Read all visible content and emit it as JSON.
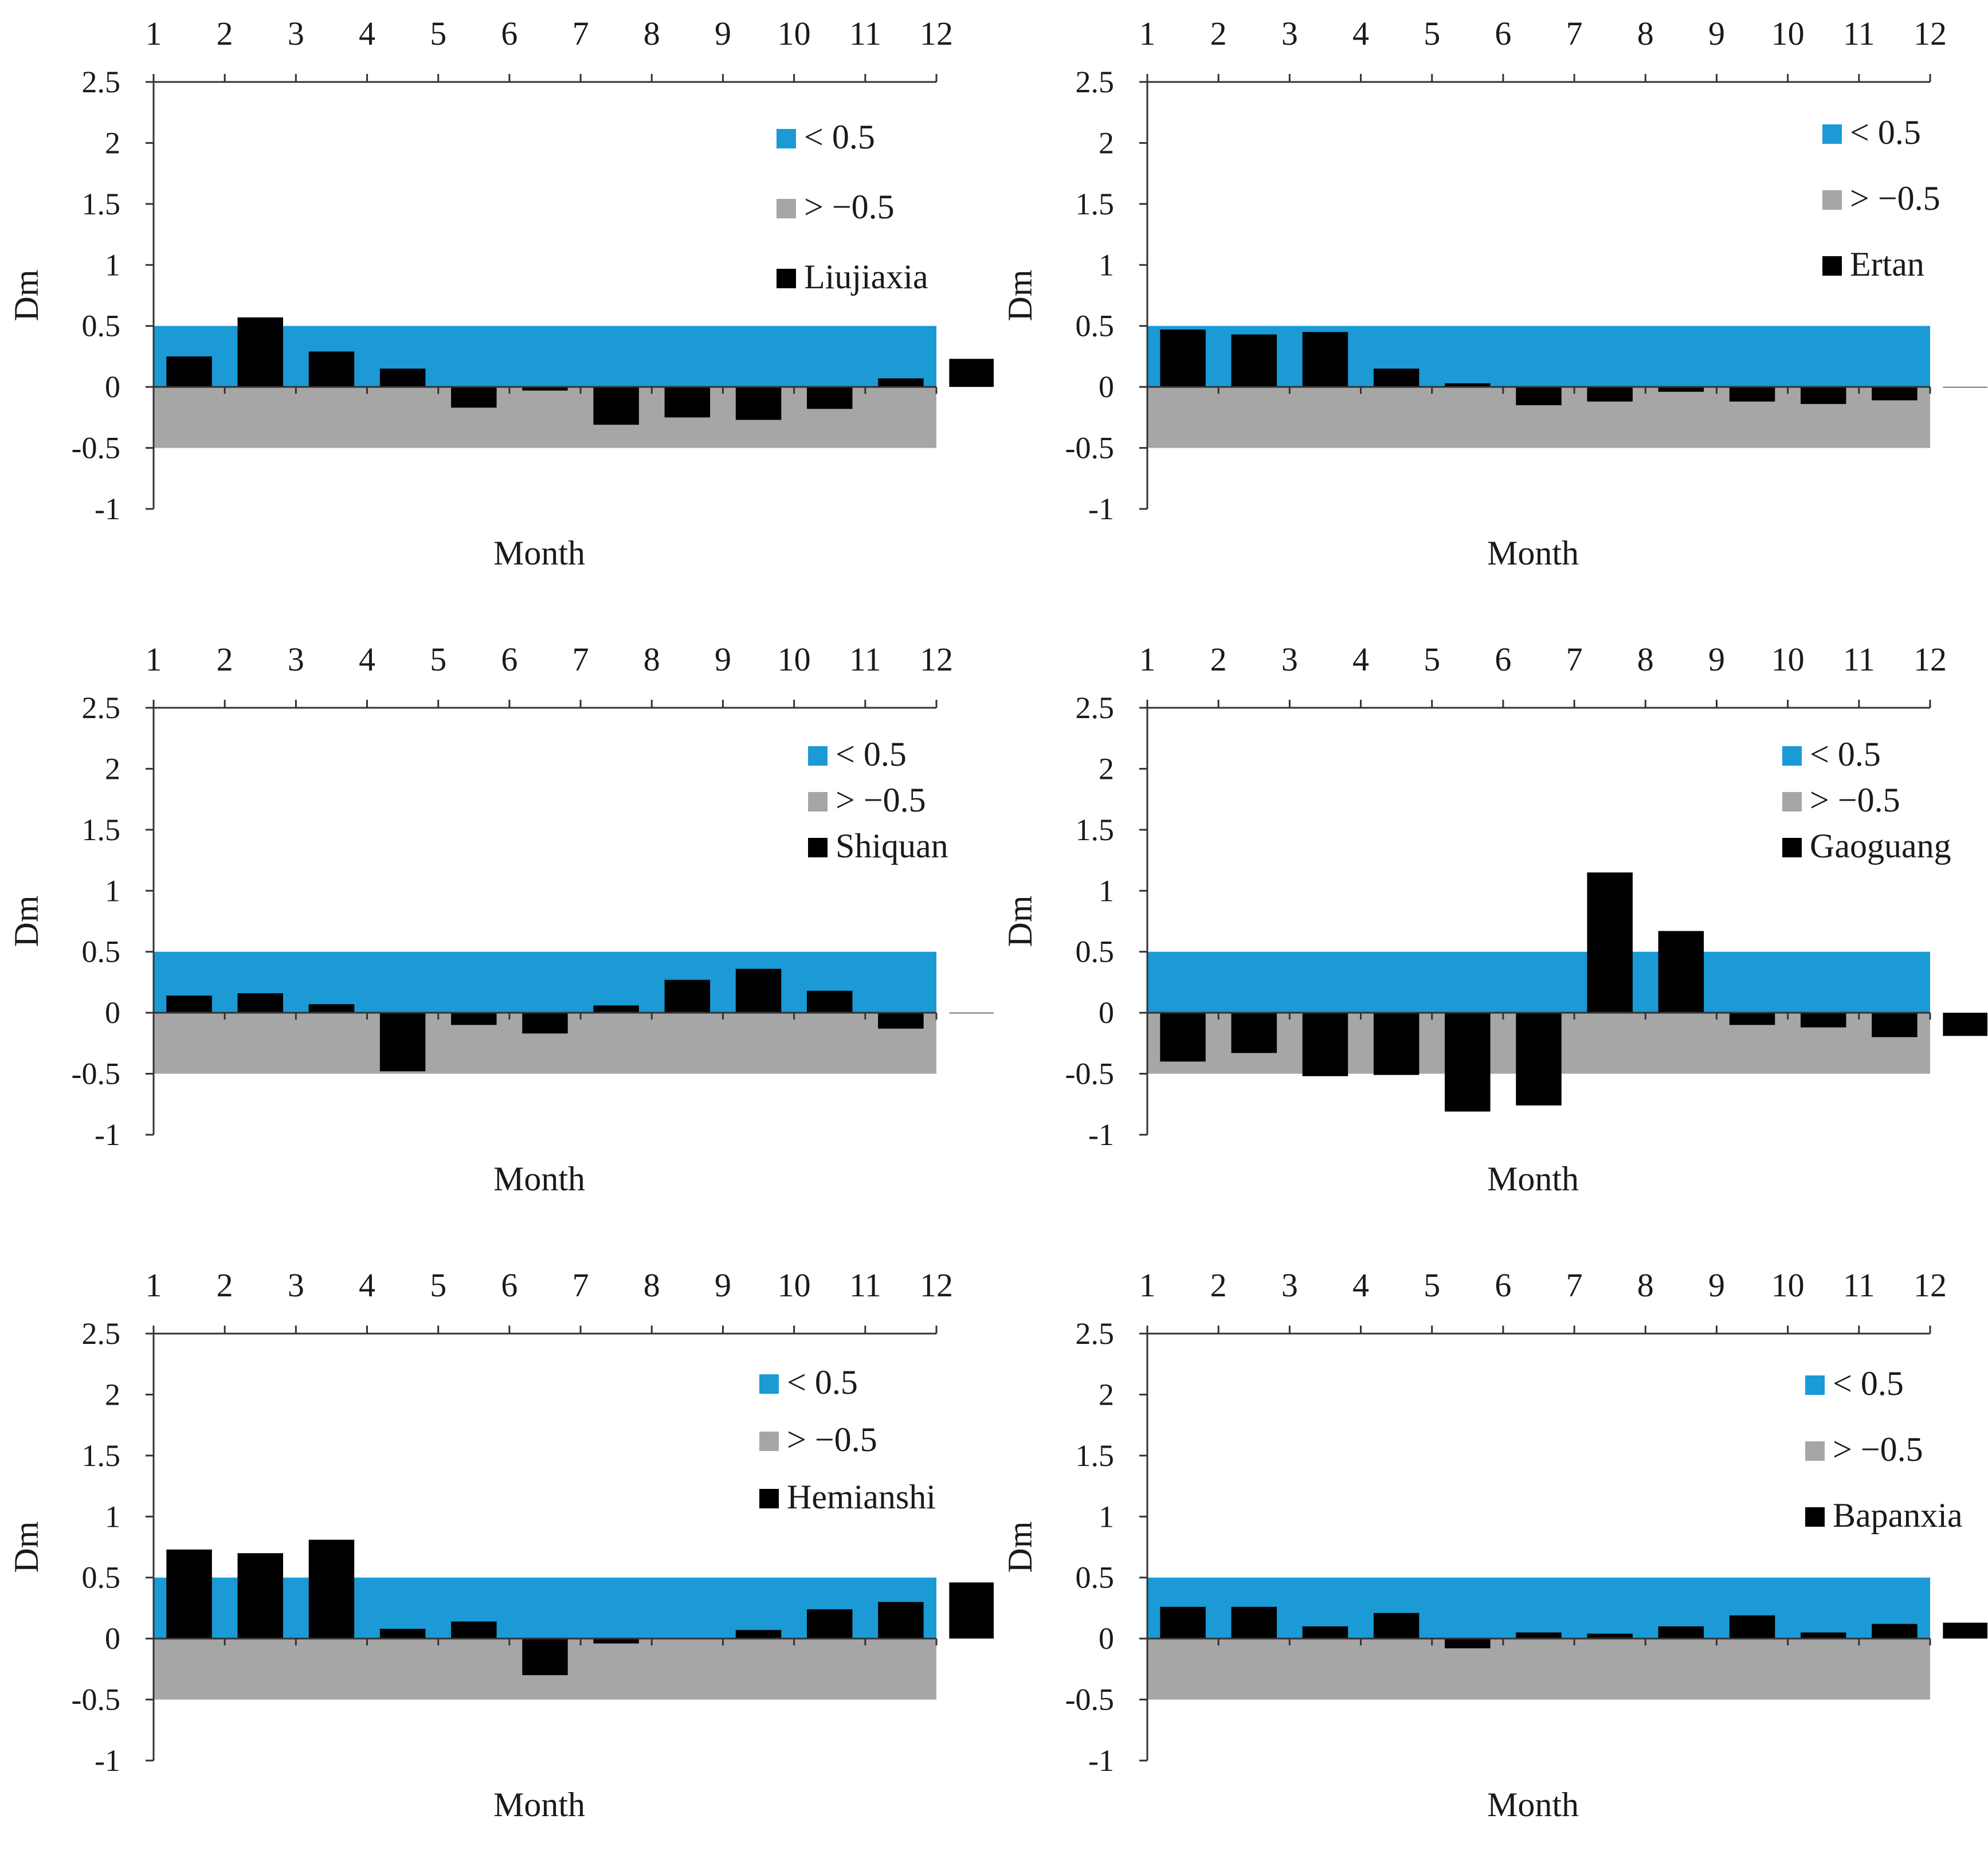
{
  "chart_data": [
    {
      "type": "bar",
      "title": "",
      "xlabel": "Month",
      "ylabel": "Dm",
      "x_ticks": [
        "1",
        "2",
        "3",
        "4",
        "5",
        "6",
        "7",
        "8",
        "9",
        "10",
        "11",
        "12"
      ],
      "y_ticks": [
        "2.5",
        "2",
        "1.5",
        "1",
        "0.5",
        "0",
        "-0.5",
        "-1"
      ],
      "ylim": [
        -1,
        2.5
      ],
      "bands": [
        {
          "label": "< 0.5",
          "from": 0,
          "to": 0.5,
          "color": "#1b9ad6"
        },
        {
          "label": "> −0.5",
          "from": -0.5,
          "to": 0,
          "color": "#a6a6a6"
        }
      ],
      "series": [
        {
          "name": "Liujiaxia",
          "color": "#000000",
          "values": [
            0.25,
            0.57,
            0.29,
            0.15,
            -0.17,
            -0.03,
            -0.31,
            -0.25,
            -0.27,
            -0.18,
            0.07,
            0.23
          ]
        }
      ]
    },
    {
      "type": "bar",
      "title": "",
      "xlabel": "Month",
      "ylabel": "Dm",
      "x_ticks": [
        "1",
        "2",
        "3",
        "4",
        "5",
        "6",
        "7",
        "8",
        "9",
        "10",
        "11",
        "12"
      ],
      "y_ticks": [
        "2.5",
        "2",
        "1.5",
        "1",
        "0.5",
        "0",
        "-0.5",
        "-1"
      ],
      "ylim": [
        -1,
        2.5
      ],
      "bands": [
        {
          "label": "< 0.5",
          "from": 0,
          "to": 0.5,
          "color": "#1b9ad6"
        },
        {
          "label": "> −0.5",
          "from": -0.5,
          "to": 0,
          "color": "#a6a6a6"
        }
      ],
      "series": [
        {
          "name": "Ertan",
          "color": "#000000",
          "values": [
            0.47,
            0.43,
            0.45,
            0.15,
            0.03,
            -0.15,
            -0.12,
            -0.04,
            -0.12,
            -0.14,
            -0.11,
            0.0
          ]
        }
      ]
    },
    {
      "type": "bar",
      "title": "",
      "xlabel": "Month",
      "ylabel": "Dm",
      "x_ticks": [
        "1",
        "2",
        "3",
        "4",
        "5",
        "6",
        "7",
        "8",
        "9",
        "10",
        "11",
        "12"
      ],
      "y_ticks": [
        "2.5",
        "2",
        "1.5",
        "1",
        "0.5",
        "0",
        "-0.5",
        "-1"
      ],
      "ylim": [
        -1,
        2.5
      ],
      "bands": [
        {
          "label": "< 0.5",
          "from": 0,
          "to": 0.5,
          "color": "#1b9ad6"
        },
        {
          "label": "> −0.5",
          "from": -0.5,
          "to": 0,
          "color": "#a6a6a6"
        }
      ],
      "series": [
        {
          "name": "Shiquan",
          "color": "#000000",
          "values": [
            0.14,
            0.16,
            0.07,
            -0.48,
            -0.1,
            -0.17,
            0.06,
            0.27,
            0.36,
            0.18,
            -0.13,
            0.0
          ]
        }
      ]
    },
    {
      "type": "bar",
      "title": "",
      "xlabel": "Month",
      "ylabel": "Dm",
      "x_ticks": [
        "1",
        "2",
        "3",
        "4",
        "5",
        "6",
        "7",
        "8",
        "9",
        "10",
        "11",
        "12"
      ],
      "y_ticks": [
        "2.5",
        "2",
        "1.5",
        "1",
        "0.5",
        "0",
        "-0.5",
        "-1"
      ],
      "ylim": [
        -1,
        2.5
      ],
      "bands": [
        {
          "label": "< 0.5",
          "from": 0,
          "to": 0.5,
          "color": "#1b9ad6"
        },
        {
          "label": "> −0.5",
          "from": -0.5,
          "to": 0,
          "color": "#a6a6a6"
        }
      ],
      "series": [
        {
          "name": "Gaoguang",
          "color": "#000000",
          "values": [
            -0.4,
            -0.33,
            -0.52,
            -0.51,
            -0.81,
            -0.76,
            1.15,
            0.67,
            -0.1,
            -0.12,
            -0.2,
            -0.19
          ]
        }
      ]
    },
    {
      "type": "bar",
      "title": "",
      "xlabel": "Month",
      "ylabel": "Dm",
      "x_ticks": [
        "1",
        "2",
        "3",
        "4",
        "5",
        "6",
        "7",
        "8",
        "9",
        "10",
        "11",
        "12"
      ],
      "y_ticks": [
        "2.5",
        "2",
        "1.5",
        "1",
        "0.5",
        "0",
        "-0.5",
        "-1"
      ],
      "ylim": [
        -1,
        2.5
      ],
      "bands": [
        {
          "label": "< 0.5",
          "from": 0,
          "to": 0.5,
          "color": "#1b9ad6"
        },
        {
          "label": "> −0.5",
          "from": -0.5,
          "to": 0,
          "color": "#a6a6a6"
        }
      ],
      "series": [
        {
          "name": "Hemianshi",
          "color": "#000000",
          "values": [
            0.73,
            0.7,
            0.81,
            0.08,
            0.14,
            -0.3,
            -0.04,
            0.0,
            0.07,
            0.24,
            0.3,
            0.46
          ]
        }
      ]
    },
    {
      "type": "bar",
      "title": "",
      "xlabel": "Month",
      "ylabel": "Dm",
      "x_ticks": [
        "1",
        "2",
        "3",
        "4",
        "5",
        "6",
        "7",
        "8",
        "9",
        "10",
        "11",
        "12"
      ],
      "y_ticks": [
        "2.5",
        "2",
        "1.5",
        "1",
        "0.5",
        "0",
        "-0.5",
        "-1"
      ],
      "ylim": [
        -1,
        2.5
      ],
      "bands": [
        {
          "label": "< 0.5",
          "from": 0,
          "to": 0.5,
          "color": "#1b9ad6"
        },
        {
          "label": "> −0.5",
          "from": -0.5,
          "to": 0,
          "color": "#a6a6a6"
        }
      ],
      "series": [
        {
          "name": "Bapanxia",
          "color": "#000000",
          "values": [
            0.26,
            0.26,
            0.1,
            0.21,
            -0.08,
            0.05,
            0.04,
            0.1,
            0.19,
            0.05,
            0.12,
            0.13
          ]
        }
      ]
    }
  ]
}
